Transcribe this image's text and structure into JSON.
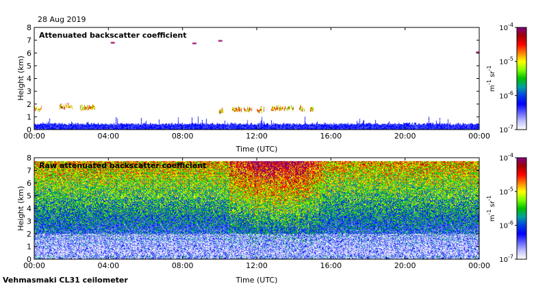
{
  "date": "28 Aug 2019",
  "instrument": "Vehmasmaki CL31 ceilometer",
  "chart_data": [
    {
      "type": "heatmap",
      "title": "Attenuated backscatter coefficient",
      "xlabel": "Time (UTC)",
      "ylabel": "Height (km)",
      "x_ticks": [
        "00:00",
        "04:00",
        "08:00",
        "12:00",
        "16:00",
        "20:00",
        "00:00"
      ],
      "y_ticks": [
        "0",
        "1",
        "2",
        "3",
        "4",
        "5",
        "6",
        "7",
        "8"
      ],
      "xlim_hours": [
        0,
        24
      ],
      "ylim_km": [
        0,
        8
      ],
      "colorbar": {
        "min_label": "10",
        "min_exp": "-7",
        "labels": [
          {
            "base": "10",
            "exp": "-6"
          },
          {
            "base": "10",
            "exp": "-5"
          }
        ],
        "max_label": "10",
        "max_exp": "-4",
        "unit_text": "m",
        "unit_exp1": "-1",
        "unit_sr": "sr",
        "unit_exp2": "-1"
      },
      "features": {
        "boundary_layer_top_km": 0.4,
        "cloud_layers": [
          {
            "start_h": 0.0,
            "end_h": 0.4,
            "height_km": 1.55
          },
          {
            "start_h": 1.4,
            "end_h": 2.1,
            "height_km": 1.65
          },
          {
            "start_h": 2.5,
            "end_h": 3.3,
            "height_km": 1.6
          },
          {
            "start_h": 10.0,
            "end_h": 10.2,
            "height_km": 1.3
          },
          {
            "start_h": 10.7,
            "end_h": 11.8,
            "height_km": 1.45
          },
          {
            "start_h": 12.0,
            "end_h": 12.4,
            "height_km": 1.4
          },
          {
            "start_h": 12.8,
            "end_h": 14.0,
            "height_km": 1.55
          },
          {
            "start_h": 14.3,
            "end_h": 14.6,
            "height_km": 1.5
          },
          {
            "start_h": 14.9,
            "end_h": 15.1,
            "height_km": 1.45
          }
        ],
        "high_specks": [
          {
            "time_h": 4.2,
            "height_km": 6.85
          },
          {
            "time_h": 8.6,
            "height_km": 6.8
          },
          {
            "time_h": 10.0,
            "height_km": 7.0
          },
          {
            "time_h": 23.9,
            "height_km": 6.1
          }
        ]
      }
    },
    {
      "type": "heatmap",
      "title": "Raw attenuated backscatter coefficient",
      "xlabel": "Time (UTC)",
      "ylabel": "Height (km)",
      "x_ticks": [
        "00:00",
        "04:00",
        "08:00",
        "12:00",
        "16:00",
        "20:00",
        "00:00"
      ],
      "y_ticks": [
        "0",
        "1",
        "2",
        "3",
        "4",
        "5",
        "6",
        "7",
        "8"
      ],
      "xlim_hours": [
        0,
        24
      ],
      "ylim_km": [
        0,
        8
      ],
      "colorbar": {
        "min_label": "10",
        "min_exp": "-7",
        "labels": [
          {
            "base": "10",
            "exp": "-6"
          },
          {
            "base": "10",
            "exp": "-5"
          }
        ],
        "max_label": "10",
        "max_exp": "-4",
        "unit_text": "m",
        "unit_exp1": "-1",
        "unit_sr": "sr",
        "unit_exp2": "-1"
      },
      "features": {
        "data_top_km": 7.7,
        "noisy_period_h": [
          10.5,
          15.5
        ]
      }
    }
  ],
  "colors": [
    "#ffffff",
    "#bfbfff",
    "#6060ff",
    "#0000ff",
    "#0040e0",
    "#00a0a0",
    "#00c000",
    "#80ff00",
    "#ffff00",
    "#ff8000",
    "#ff0000",
    "#a00000",
    "#800080"
  ]
}
